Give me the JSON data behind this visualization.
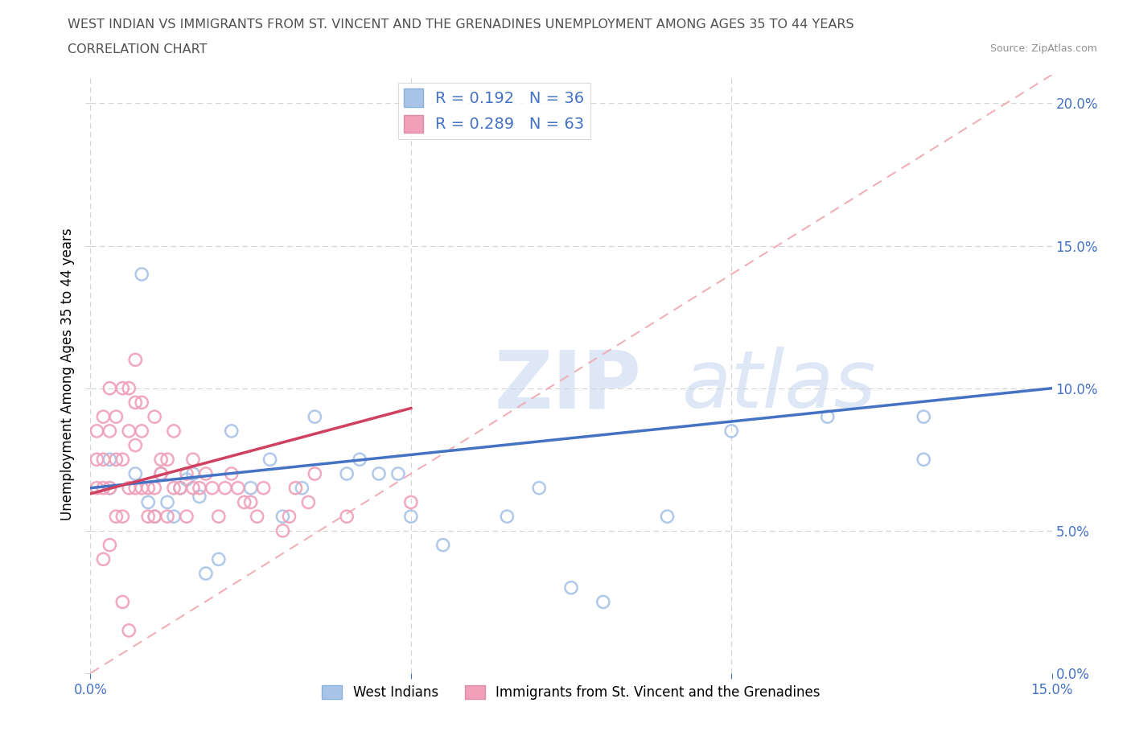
{
  "title_line1": "WEST INDIAN VS IMMIGRANTS FROM ST. VINCENT AND THE GRENADINES UNEMPLOYMENT AMONG AGES 35 TO 44 YEARS",
  "title_line2": "CORRELATION CHART",
  "source_text": "Source: ZipAtlas.com",
  "ylabel": "Unemployment Among Ages 35 to 44 years",
  "xlim": [
    0.0,
    0.15
  ],
  "ylim": [
    0.0,
    0.21
  ],
  "xticks": [
    0.0,
    0.05,
    0.1,
    0.15
  ],
  "yticks": [
    0.0,
    0.05,
    0.1,
    0.15,
    0.2
  ],
  "west_indian_color": "#a8c4e8",
  "svg_color": "#f0a0b8",
  "trend_blue_color": "#4472c4",
  "trend_pink_color": "#d04060",
  "diag_color": "#f0b0b8",
  "legend_R1": "0.192",
  "legend_N1": "36",
  "legend_R2": "0.289",
  "legend_N2": "63",
  "watermark": "ZIPatlas",
  "wi_x": [
    0.003,
    0.003,
    0.007,
    0.008,
    0.009,
    0.01,
    0.011,
    0.012,
    0.013,
    0.014,
    0.015,
    0.016,
    0.017,
    0.018,
    0.02,
    0.022,
    0.025,
    0.028,
    0.03,
    0.033,
    0.035,
    0.04,
    0.042,
    0.045,
    0.048,
    0.05,
    0.055,
    0.065,
    0.07,
    0.075,
    0.08,
    0.09,
    0.1,
    0.115,
    0.13,
    0.13
  ],
  "wi_y": [
    0.075,
    0.065,
    0.07,
    0.14,
    0.06,
    0.055,
    0.07,
    0.06,
    0.055,
    0.065,
    0.068,
    0.07,
    0.062,
    0.035,
    0.04,
    0.085,
    0.065,
    0.075,
    0.055,
    0.065,
    0.09,
    0.07,
    0.075,
    0.07,
    0.07,
    0.055,
    0.045,
    0.055,
    0.065,
    0.03,
    0.025,
    0.055,
    0.085,
    0.09,
    0.09,
    0.075
  ],
  "svg_x": [
    0.001,
    0.001,
    0.001,
    0.002,
    0.002,
    0.002,
    0.002,
    0.003,
    0.003,
    0.003,
    0.003,
    0.004,
    0.004,
    0.004,
    0.005,
    0.005,
    0.005,
    0.005,
    0.006,
    0.006,
    0.006,
    0.006,
    0.007,
    0.007,
    0.007,
    0.007,
    0.008,
    0.008,
    0.008,
    0.009,
    0.009,
    0.01,
    0.01,
    0.01,
    0.011,
    0.011,
    0.012,
    0.012,
    0.013,
    0.013,
    0.014,
    0.015,
    0.015,
    0.016,
    0.016,
    0.017,
    0.018,
    0.019,
    0.02,
    0.021,
    0.022,
    0.023,
    0.024,
    0.025,
    0.026,
    0.027,
    0.03,
    0.031,
    0.032,
    0.034,
    0.035,
    0.04,
    0.05
  ],
  "svg_y": [
    0.065,
    0.075,
    0.085,
    0.04,
    0.065,
    0.075,
    0.09,
    0.045,
    0.065,
    0.085,
    0.1,
    0.055,
    0.075,
    0.09,
    0.025,
    0.055,
    0.075,
    0.1,
    0.015,
    0.065,
    0.085,
    0.1,
    0.065,
    0.08,
    0.095,
    0.11,
    0.065,
    0.085,
    0.095,
    0.055,
    0.065,
    0.055,
    0.065,
    0.09,
    0.07,
    0.075,
    0.055,
    0.075,
    0.065,
    0.085,
    0.065,
    0.055,
    0.07,
    0.065,
    0.075,
    0.065,
    0.07,
    0.065,
    0.055,
    0.065,
    0.07,
    0.065,
    0.06,
    0.06,
    0.055,
    0.065,
    0.05,
    0.055,
    0.065,
    0.06,
    0.07,
    0.055,
    0.06
  ],
  "wi_trend_x": [
    0.0,
    0.15
  ],
  "wi_trend_y": [
    0.065,
    0.1
  ],
  "svg_trend_x": [
    0.0,
    0.05
  ],
  "svg_trend_y": [
    0.063,
    0.093
  ]
}
